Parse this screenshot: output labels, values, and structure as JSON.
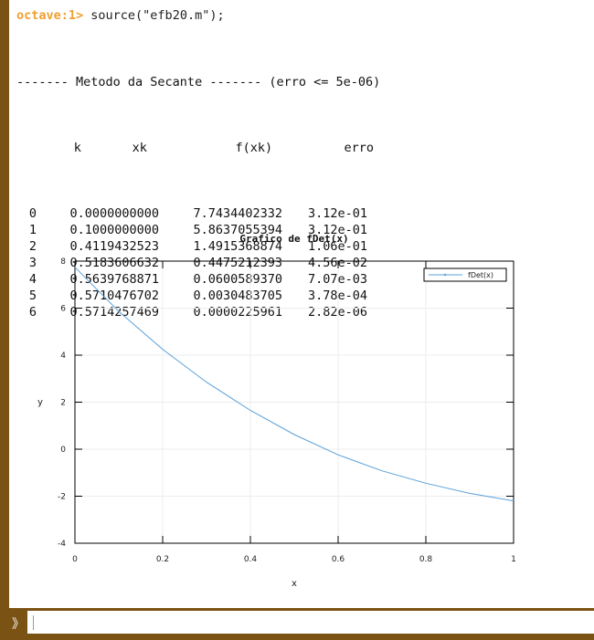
{
  "console": {
    "prompt": "octave:1>",
    "command": " source(\"efb20.m\");",
    "method_header": "------- Metodo da Secante ------- (erro <= 5e-06)",
    "table": {
      "headers": [
        "k",
        "xk",
        "f(xk)",
        "erro"
      ],
      "rows": [
        [
          "0",
          "0.0000000000",
          "7.7434402332",
          "3.12e-01"
        ],
        [
          "1",
          "0.1000000000",
          "5.8637055394",
          "3.12e-01"
        ],
        [
          "2",
          "0.4119432523",
          "1.4915368874",
          "1.06e-01"
        ],
        [
          "3",
          "0.5183606632",
          "0.4475212393",
          "4.56e-02"
        ],
        [
          "4",
          "0.5639768871",
          "0.0600589370",
          "7.07e-03"
        ],
        [
          "5",
          "0.5710476702",
          "0.0030483705",
          "3.78e-04"
        ],
        [
          "6",
          "0.5714257469",
          "0.0000225961",
          "2.82e-06"
        ]
      ]
    }
  },
  "input": {
    "glyph": "》",
    "value": ""
  },
  "chart_data": {
    "type": "line",
    "title": "Grafico de fDet(x)",
    "xlabel": "x",
    "ylabel": "y",
    "xlim": [
      0,
      1
    ],
    "ylim": [
      -4,
      8
    ],
    "xticks": [
      "0",
      "0.2",
      "0.4",
      "0.6",
      "0.8",
      "1"
    ],
    "yticks": [
      "8",
      "6",
      "4",
      "2",
      "0",
      "-2",
      "-4"
    ],
    "grid": true,
    "legend_position": "top-right",
    "series": [
      {
        "name": "fDet(x)",
        "color": "#5aa0d8",
        "x": [
          0,
          0.1,
          0.2,
          0.3,
          0.4,
          0.5,
          0.6,
          0.7,
          0.8,
          0.9,
          1.0
        ],
        "y": [
          7.74,
          5.86,
          4.25,
          2.85,
          1.65,
          0.62,
          -0.24,
          -0.92,
          -1.45,
          -1.88,
          -2.2
        ]
      }
    ]
  }
}
